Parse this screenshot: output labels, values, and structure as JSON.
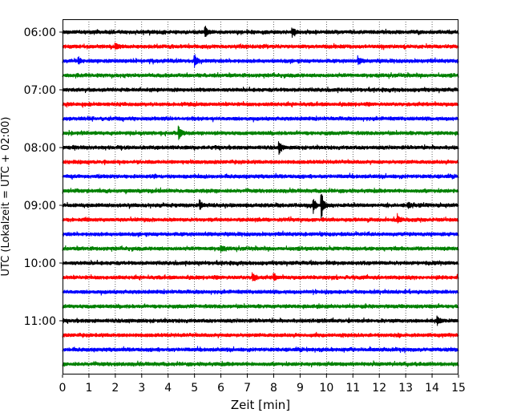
{
  "chart_data": {
    "type": "line",
    "subtype": "helicorder",
    "xlabel": "Zeit  [min]",
    "ylabel": "UTC (Lokalzeit = UTC + 02:00)",
    "xlim": [
      0,
      15
    ],
    "x_ticks": [
      0,
      1,
      2,
      3,
      4,
      5,
      6,
      7,
      8,
      9,
      10,
      11,
      12,
      13,
      14,
      15
    ],
    "x_tick_labels": [
      "0",
      "1",
      "2",
      "3",
      "4",
      "5",
      "6",
      "7",
      "8",
      "9",
      "10",
      "11",
      "12",
      "13",
      "14",
      "15"
    ],
    "y_tick_labels": [
      "06:00",
      "07:00",
      "08:00",
      "09:00",
      "10:00",
      "11:00"
    ],
    "y_tick_rows": [
      0,
      4,
      8,
      12,
      16,
      20
    ],
    "row_interval_minutes": 15,
    "row_count": 24,
    "row_colors": [
      "#000000",
      "#ff0000",
      "#0000ff",
      "#008000"
    ],
    "grid": "vertical dotted at each minute",
    "events": [
      {
        "row": 0,
        "minute": 5.4,
        "amplitude": 0.7
      },
      {
        "row": 0,
        "minute": 8.7,
        "amplitude": 0.5
      },
      {
        "row": 1,
        "minute": 2.0,
        "amplitude": 0.5
      },
      {
        "row": 2,
        "minute": 0.6,
        "amplitude": 0.5
      },
      {
        "row": 2,
        "minute": 5.0,
        "amplitude": 0.8
      },
      {
        "row": 2,
        "minute": 11.2,
        "amplitude": 0.4
      },
      {
        "row": 7,
        "minute": 4.4,
        "amplitude": 0.9
      },
      {
        "row": 8,
        "minute": 8.2,
        "amplitude": 0.8
      },
      {
        "row": 12,
        "minute": 5.2,
        "amplitude": 0.6
      },
      {
        "row": 12,
        "minute": 9.5,
        "amplitude": 0.9
      },
      {
        "row": 12,
        "minute": 9.8,
        "amplitude": 1.8
      },
      {
        "row": 12,
        "minute": 13.1,
        "amplitude": 0.4
      },
      {
        "row": 13,
        "minute": 12.7,
        "amplitude": 0.4
      },
      {
        "row": 15,
        "minute": 6.0,
        "amplitude": 0.4
      },
      {
        "row": 17,
        "minute": 7.2,
        "amplitude": 0.6
      },
      {
        "row": 17,
        "minute": 8.0,
        "amplitude": 0.4
      },
      {
        "row": 20,
        "minute": 14.2,
        "amplitude": 0.5
      }
    ]
  }
}
